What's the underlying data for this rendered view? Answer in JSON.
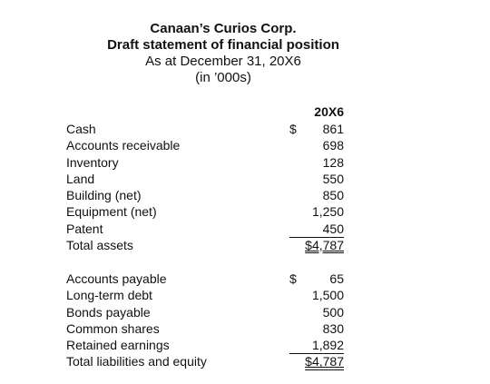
{
  "header": {
    "company": "Canaan’s Curios Corp.",
    "title": "Draft statement of financial position",
    "date": "As at December 31, 20X6",
    "units": "(in ’000s)"
  },
  "column_header": "20X6",
  "assets": [
    {
      "label": "Cash",
      "currency": "$",
      "value": "861"
    },
    {
      "label": "Accounts receivable",
      "currency": "",
      "value": "698"
    },
    {
      "label": "Inventory",
      "currency": "",
      "value": "128"
    },
    {
      "label": "Land",
      "currency": "",
      "value": "550"
    },
    {
      "label": "Building (net)",
      "currency": "",
      "value": "850"
    },
    {
      "label": "Equipment (net)",
      "currency": "",
      "value": "1,250"
    },
    {
      "label": "Patent",
      "currency": "",
      "value": "450"
    },
    {
      "label": "Total assets",
      "currency": "",
      "value": "$4,787"
    }
  ],
  "liabilities_equity": [
    {
      "label": "Accounts payable",
      "currency": "$",
      "value": "65"
    },
    {
      "label": "Long-term debt",
      "currency": "",
      "value": "1,500"
    },
    {
      "label": "Bonds payable",
      "currency": "",
      "value": "500"
    },
    {
      "label": "Common shares",
      "currency": "",
      "value": "830"
    },
    {
      "label": "Retained earnings",
      "currency": "",
      "value": "1,892"
    },
    {
      "label": "Total liabilities and equity",
      "currency": "",
      "value": "$4,787"
    }
  ]
}
